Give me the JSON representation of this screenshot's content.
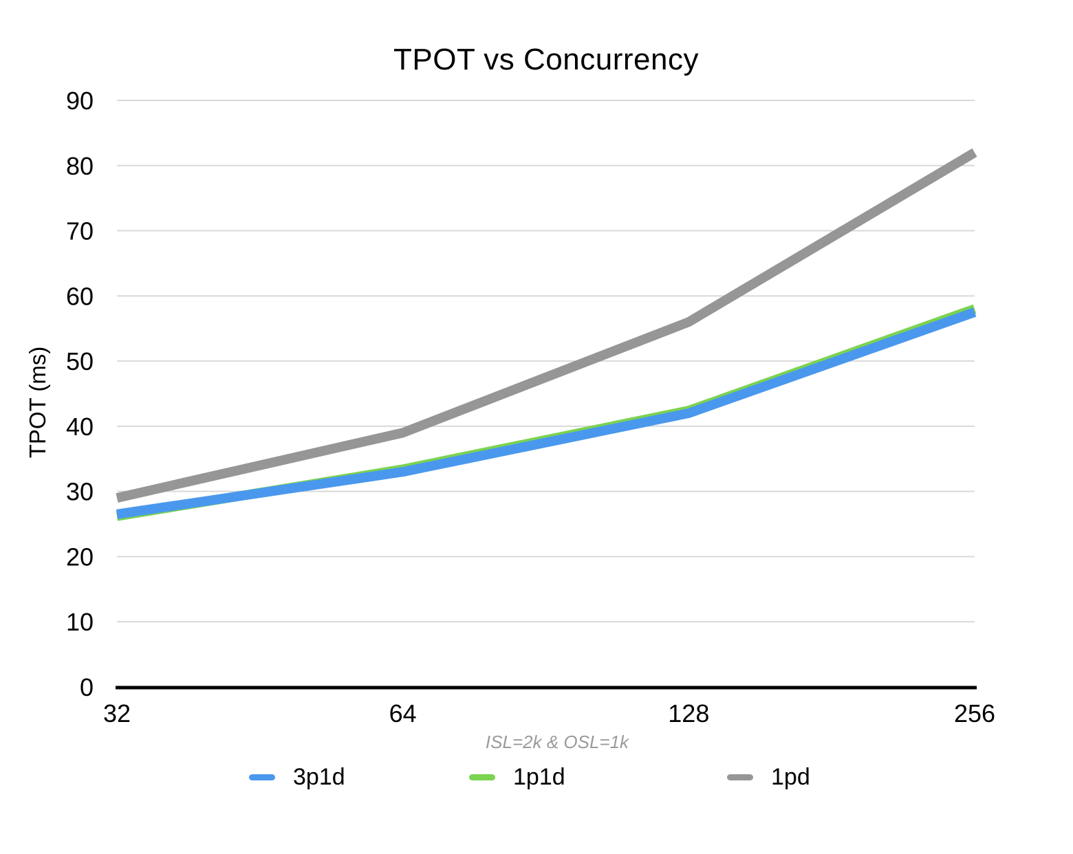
{
  "chart": {
    "title": "TPOT vs Concurrency",
    "y_axis_label": "TPOT (ms)",
    "subtitle": "ISL=2k & OSL=1k"
  },
  "legend": {
    "items": [
      {
        "label": "3p1d",
        "color": "#4A98EE"
      },
      {
        "label": "1p1d",
        "color": "#7BD34F"
      },
      {
        "label": "1pd",
        "color": "#969696"
      }
    ]
  },
  "chart_data": {
    "type": "line",
    "title": "TPOT vs Concurrency",
    "ylabel": "TPOT (ms)",
    "xlabel": "",
    "x_note": "ISL=2k & OSL=1k",
    "categories": [
      "32",
      "64",
      "128",
      "256"
    ],
    "series": [
      {
        "name": "3p1d",
        "color": "#4A98EE",
        "values": [
          26.5,
          33.0,
          42.0,
          57.5
        ]
      },
      {
        "name": "1p1d",
        "color": "#7BD34F",
        "values": [
          26.2,
          33.4,
          42.4,
          58.0
        ]
      },
      {
        "name": "1pd",
        "color": "#969696",
        "values": [
          29.0,
          39.0,
          56.0,
          82.0
        ]
      }
    ],
    "ylim": [
      0,
      90
    ],
    "yticks": [
      0,
      10,
      20,
      30,
      40,
      50,
      60,
      70,
      80,
      90
    ],
    "grid": true,
    "gridline_color": "#d9d9d9",
    "axis_color": "#000000",
    "legend_position": "bottom"
  }
}
